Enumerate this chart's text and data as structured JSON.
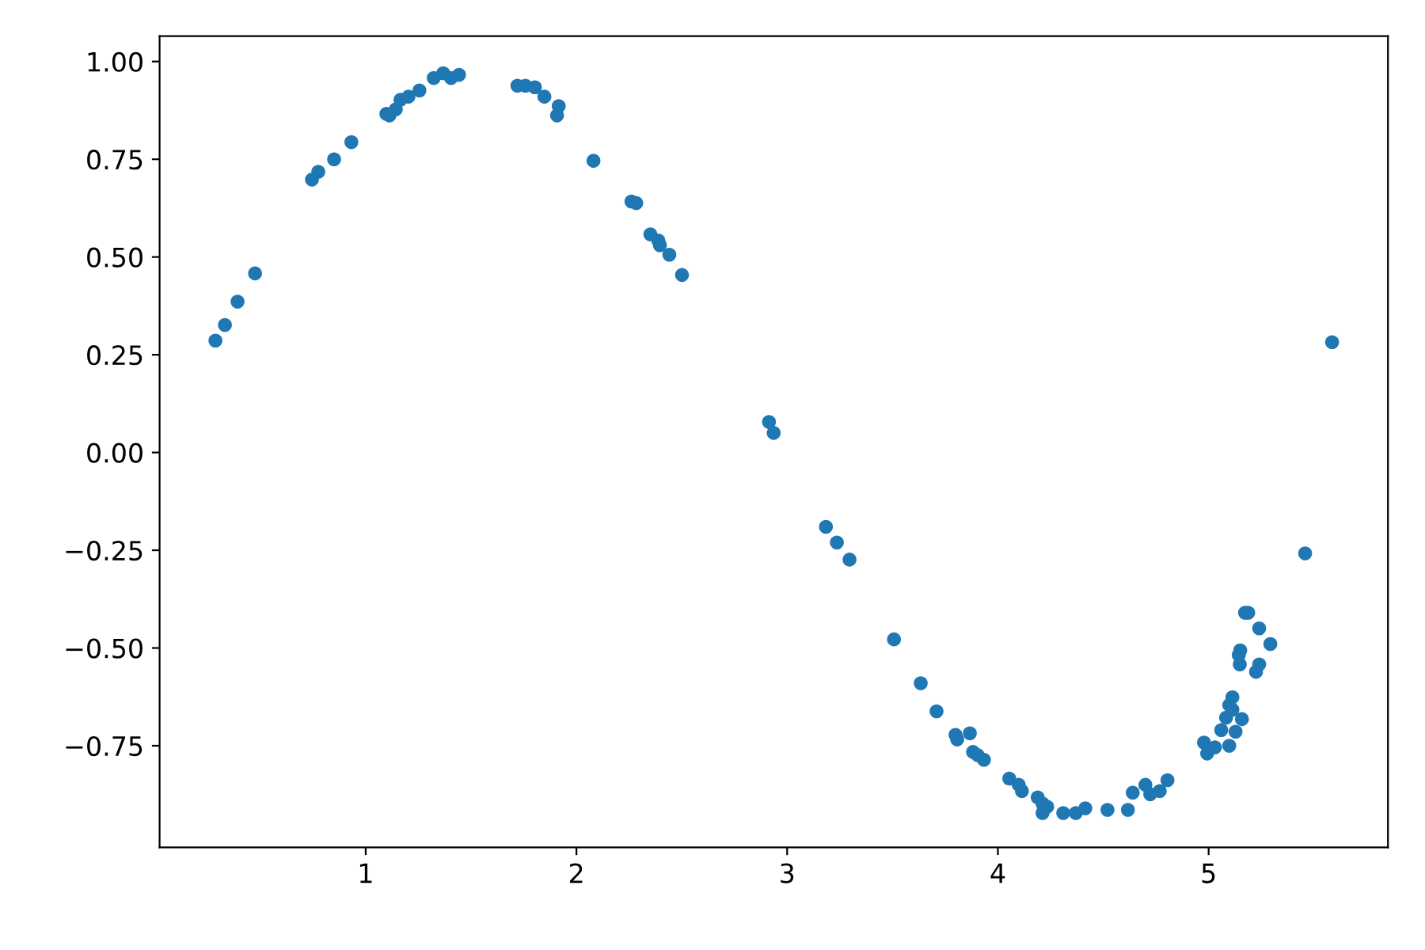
{
  "chart_data": {
    "type": "scatter",
    "marker": "circle",
    "xlim": [
      0.022,
      5.851
    ],
    "ylim": [
      -1.01,
      1.065
    ],
    "xticks": [
      1,
      2,
      3,
      4,
      5
    ],
    "yticks": [
      {
        "value": -0.75,
        "label": "−0.75"
      },
      {
        "value": -0.5,
        "label": "−0.50"
      },
      {
        "value": -0.25,
        "label": "−0.25"
      },
      {
        "value": 0,
        "label": "0.00"
      },
      {
        "value": 0.25,
        "label": "0.25"
      },
      {
        "value": 0.5,
        "label": "0.50"
      },
      {
        "value": 0.75,
        "label": "0.75"
      },
      {
        "value": 1.0,
        "label": "1.00"
      }
    ],
    "series": [
      {
        "color": "#1f77b4",
        "x": [
          0.287,
          0.332,
          0.392,
          0.475,
          0.745,
          0.775,
          0.85,
          0.932,
          1.098,
          1.113,
          1.143,
          1.165,
          1.203,
          1.255,
          1.323,
          1.368,
          1.405,
          1.443,
          1.72,
          1.758,
          1.803,
          1.848,
          1.916,
          1.908,
          2.081,
          2.261,
          2.284,
          2.351,
          2.389,
          2.396,
          2.441,
          2.501,
          2.914,
          2.936,
          3.184,
          3.236,
          3.296,
          3.507,
          3.634,
          3.709,
          3.799,
          3.867,
          3.807,
          3.882,
          3.904,
          3.934,
          4.054,
          4.099,
          4.114,
          4.189,
          4.212,
          4.234,
          4.212,
          4.31,
          4.37,
          4.415,
          4.52,
          4.617,
          4.64,
          4.7,
          4.723,
          4.768,
          4.805,
          4.978,
          4.993,
          5.03,
          5.098,
          5.06,
          5.128,
          5.083,
          5.158,
          5.113,
          5.098,
          5.113,
          5.225,
          5.24,
          5.148,
          5.143,
          5.15,
          5.293,
          5.24,
          5.173,
          5.188,
          5.458,
          5.586
        ],
        "values": [
          0.286,
          0.326,
          0.386,
          0.458,
          0.698,
          0.718,
          0.75,
          0.794,
          0.866,
          0.862,
          0.878,
          0.902,
          0.91,
          0.926,
          0.958,
          0.97,
          0.958,
          0.966,
          0.938,
          0.938,
          0.934,
          0.91,
          0.886,
          0.862,
          0.746,
          0.642,
          0.638,
          0.558,
          0.542,
          0.53,
          0.506,
          0.454,
          0.078,
          0.05,
          -0.19,
          -0.23,
          -0.274,
          -0.478,
          -0.59,
          -0.662,
          -0.722,
          -0.718,
          -0.734,
          -0.766,
          -0.774,
          -0.786,
          -0.834,
          -0.85,
          -0.866,
          -0.882,
          -0.898,
          -0.906,
          -0.922,
          -0.922,
          -0.922,
          -0.91,
          -0.914,
          -0.914,
          -0.87,
          -0.85,
          -0.874,
          -0.866,
          -0.838,
          -0.742,
          -0.77,
          -0.754,
          -0.75,
          -0.71,
          -0.714,
          -0.678,
          -0.682,
          -0.658,
          -0.646,
          -0.626,
          -0.561,
          -0.542,
          -0.542,
          -0.518,
          -0.506,
          -0.49,
          -0.45,
          -0.41,
          -0.41,
          -0.258,
          0.282
        ]
      }
    ]
  }
}
